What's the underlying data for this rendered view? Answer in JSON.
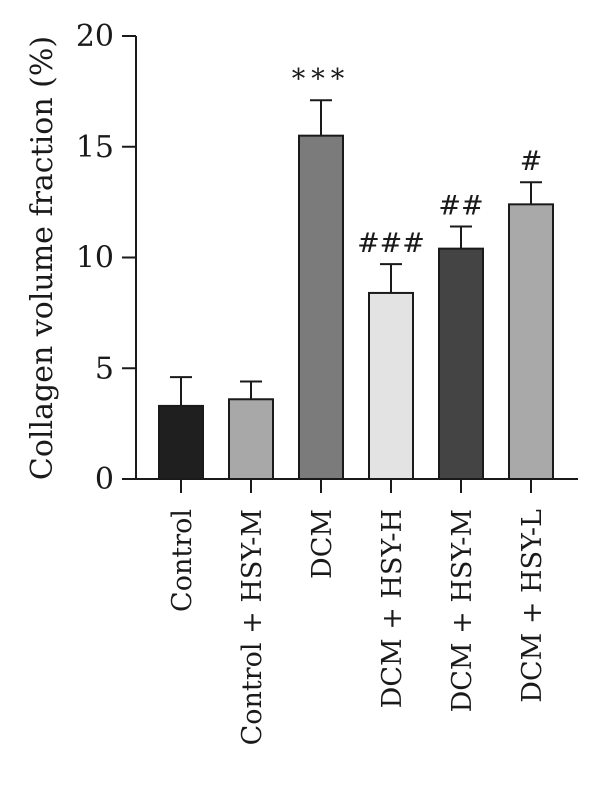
{
  "chart_data": {
    "type": "bar",
    "title": "",
    "xlabel": "",
    "ylabel": "Collagen volume fraction (%)",
    "ylim": [
      0,
      20
    ],
    "yticks": [
      0,
      5,
      10,
      15,
      20
    ],
    "grid": false,
    "categories": [
      "Control",
      "Control + HSY-M",
      "DCM",
      "DCM + HSY-H",
      "DCM + HSY-M",
      "DCM + HSY-L"
    ],
    "values": [
      3.3,
      3.6,
      15.5,
      8.4,
      10.4,
      12.4
    ],
    "errors": [
      1.3,
      0.8,
      1.6,
      1.3,
      1.0,
      1.0
    ],
    "colors": [
      "#1f1f1f",
      "#a8a8a8",
      "#7b7b7b",
      "#e3e3e3",
      "#444444",
      "#a9a9a9"
    ],
    "annotations": [
      "",
      "",
      "***",
      "###",
      "##",
      "#"
    ]
  }
}
